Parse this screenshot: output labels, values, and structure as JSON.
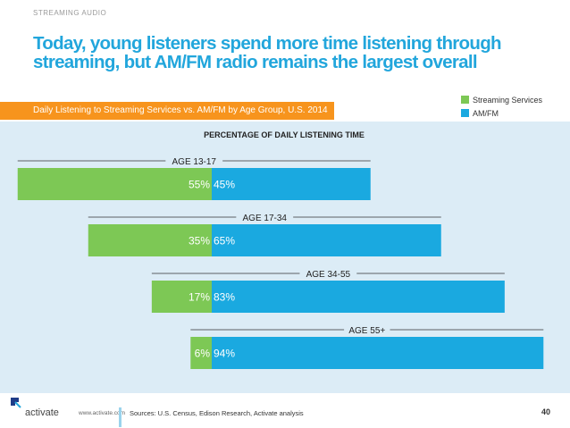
{
  "section_label": "STREAMING AUDIO",
  "headline": {
    "line1": "Today, young listeners spend more time listening through",
    "line2": "streaming, but AM/FM radio remains the largest overall"
  },
  "subtitle": "Daily Listening to Streaming Services vs. AM/FM by Age Group, U.S. 2014",
  "legend": [
    {
      "label": "Streaming Services",
      "color": "#7dc855"
    },
    {
      "label": "AM/FM",
      "color": "#1aa9e0"
    }
  ],
  "chart_data": {
    "type": "bar",
    "title": "PERCENTAGE OF DAILY LISTENING TIME",
    "categories": [
      "AGE 13-17",
      "AGE 17-34",
      "AGE 34-55",
      "AGE 55+"
    ],
    "series": [
      {
        "name": "Streaming Services",
        "values": [
          55,
          35,
          17,
          6
        ],
        "color": "#7dc855"
      },
      {
        "name": "AM/FM",
        "values": [
          45,
          65,
          83,
          94
        ],
        "color": "#1aa9e0"
      }
    ],
    "data_labels": [
      [
        "55%",
        "45%"
      ],
      [
        "35%",
        "65%"
      ],
      [
        "17%",
        "83%"
      ],
      [
        "6%",
        "94%"
      ]
    ],
    "unit": "%"
  },
  "footer": {
    "logo_text": "activate",
    "url": "www.activate.com",
    "sources": "Sources: U.S. Census, Edison Research, Activate analysis",
    "page_number": "40"
  }
}
